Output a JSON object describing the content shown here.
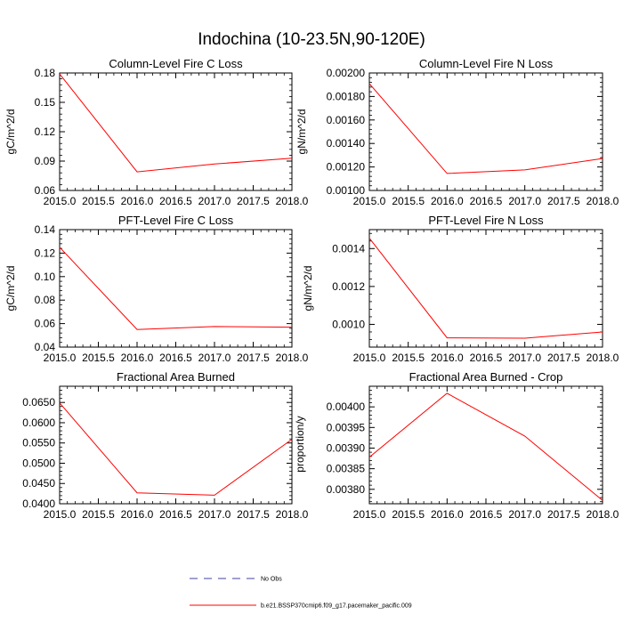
{
  "figure": {
    "title": "Indochina (10-23.5N,90-120E)"
  },
  "colors": {
    "series": "#ff0000",
    "obs": "#4040a0",
    "axes": "#000000"
  },
  "legend": {
    "placement": "bottom-center",
    "items": [
      {
        "label": "No Obs",
        "style": "dashed",
        "color": "#4040a0"
      },
      {
        "label": "b.e21.BSSP370cmip6.f09_g17.pacemaker_pacific.009",
        "style": "solid",
        "color": "#ff0000"
      }
    ]
  },
  "chart_data": [
    {
      "type": "line",
      "title": "Column-Level Fire C Loss",
      "xlabel": "",
      "ylabel": "gC/m^2/d",
      "xlim": [
        2015.0,
        2018.0
      ],
      "ylim": [
        0.06,
        0.18
      ],
      "xticks": [
        "2015.0",
        "2015.5",
        "2016.0",
        "2016.5",
        "2017.0",
        "2017.5",
        "2018.0"
      ],
      "yticks": [
        "0.06",
        "0.09",
        "0.12",
        "0.15",
        "0.18"
      ],
      "x": [
        2015.0,
        2016.0,
        2017.0,
        2018.0
      ],
      "series": [
        {
          "values": [
            0.179,
            0.079,
            0.087,
            0.093
          ]
        }
      ]
    },
    {
      "type": "line",
      "title": "Column-Level Fire N Loss",
      "xlabel": "",
      "ylabel": "gN/m^2/d",
      "xlim": [
        2015.0,
        2018.0
      ],
      "ylim": [
        0.001,
        0.002
      ],
      "xticks": [
        "2015.0",
        "2015.5",
        "2016.0",
        "2016.5",
        "2017.0",
        "2017.5",
        "2018.0"
      ],
      "yticks": [
        "0.00100",
        "0.00120",
        "0.00140",
        "0.00160",
        "0.00180",
        "0.00200"
      ],
      "x": [
        2015.0,
        2016.0,
        2017.0,
        2018.0
      ],
      "series": [
        {
          "values": [
            0.00191,
            0.001145,
            0.001175,
            0.001272
          ]
        }
      ]
    },
    {
      "type": "line",
      "title": "PFT-Level Fire C Loss",
      "xlabel": "",
      "ylabel": "gC/m^2/d",
      "xlim": [
        2015.0,
        2018.0
      ],
      "ylim": [
        0.04,
        0.14
      ],
      "xticks": [
        "2015.0",
        "2015.5",
        "2016.0",
        "2016.5",
        "2017.0",
        "2017.5",
        "2018.0"
      ],
      "yticks": [
        "0.04",
        "0.06",
        "0.08",
        "0.10",
        "0.12",
        "0.14"
      ],
      "x": [
        2015.0,
        2016.0,
        2017.0,
        2018.0
      ],
      "series": [
        {
          "values": [
            0.125,
            0.055,
            0.0575,
            0.057
          ]
        }
      ]
    },
    {
      "type": "line",
      "title": "PFT-Level Fire N Loss",
      "xlabel": "",
      "ylabel": "gN/m^2/d",
      "xlim": [
        2015.0,
        2018.0
      ],
      "ylim": [
        0.00088,
        0.0015
      ],
      "xticks": [
        "2015.0",
        "2015.5",
        "2016.0",
        "2016.5",
        "2017.0",
        "2017.5",
        "2018.0"
      ],
      "yticks": [
        "0.0010",
        "0.0012",
        "0.0014"
      ],
      "x": [
        2015.0,
        2016.0,
        2017.0,
        2018.0
      ],
      "series": [
        {
          "values": [
            0.001455,
            0.000929,
            0.000927,
            0.00096
          ]
        }
      ]
    },
    {
      "type": "line",
      "title": "Fractional Area Burned",
      "xlabel": "",
      "ylabel": "",
      "xlim": [
        2015.0,
        2018.0
      ],
      "ylim": [
        0.04,
        0.069
      ],
      "xticks": [
        "2015.0",
        "2015.5",
        "2016.0",
        "2016.5",
        "2017.0",
        "2017.5",
        "2018.0"
      ],
      "yticks": [
        "0.0400",
        "0.0450",
        "0.0500",
        "0.0550",
        "0.0600",
        "0.0650"
      ],
      "x": [
        2015.0,
        2016.0,
        2017.0,
        2018.0
      ],
      "series": [
        {
          "values": [
            0.0649,
            0.0427,
            0.0421,
            0.0559
          ]
        }
      ]
    },
    {
      "type": "line",
      "title": "Fractional Area Burned - Crop",
      "xlabel": "",
      "ylabel": "proportion/y",
      "xlim": [
        2015.0,
        2018.0
      ],
      "ylim": [
        0.003765,
        0.00405
      ],
      "xticks": [
        "2015.0",
        "2015.5",
        "2016.0",
        "2016.5",
        "2017.0",
        "2017.5",
        "2018.0"
      ],
      "yticks": [
        "0.00380",
        "0.00385",
        "0.00390",
        "0.00395",
        "0.00400"
      ],
      "x": [
        2015.0,
        2016.0,
        2017.0,
        2018.0
      ],
      "series": [
        {
          "values": [
            0.003878,
            0.004033,
            0.003929,
            0.003773
          ]
        }
      ]
    }
  ]
}
